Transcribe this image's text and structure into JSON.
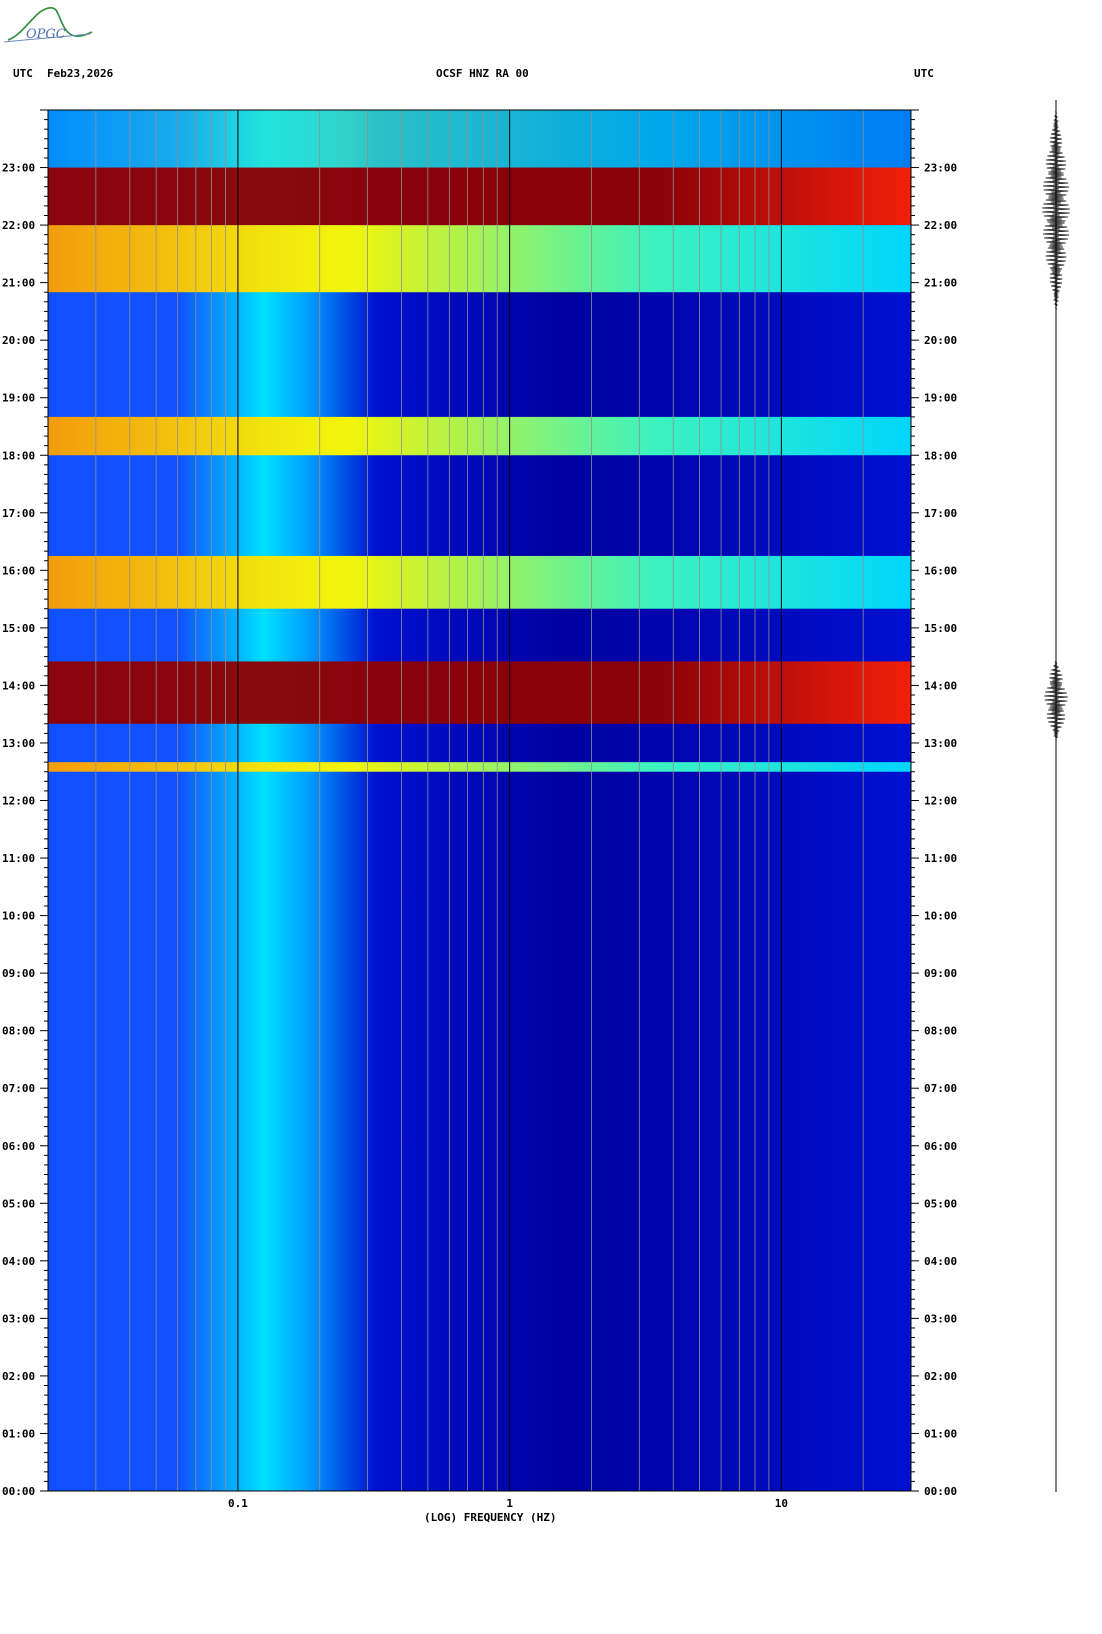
{
  "header": {
    "left_label": "UTC",
    "date": "Feb23,2026",
    "station": "OCSF HNZ RA 00",
    "right_label": "UTC"
  },
  "logo": {
    "text": "OPGC"
  },
  "chart_data": {
    "type": "heatmap",
    "title": "OCSF HNZ RA 00",
    "xlabel": "(LOG) FREQUENCY (HZ)",
    "ylabel": "UTC",
    "x_scale": "log",
    "xlim": [
      0.02,
      30
    ],
    "x_ticks": [
      {
        "value": 0.1,
        "label": "0.1"
      },
      {
        "value": 1,
        "label": "1"
      },
      {
        "value": 10,
        "label": "10"
      }
    ],
    "ylim_hours": [
      0,
      24
    ],
    "y_ticks": [
      "00:00",
      "01:00",
      "02:00",
      "03:00",
      "04:00",
      "05:00",
      "06:00",
      "07:00",
      "08:00",
      "09:00",
      "10:00",
      "11:00",
      "12:00",
      "13:00",
      "14:00",
      "15:00",
      "16:00",
      "17:00",
      "18:00",
      "19:00",
      "20:00",
      "21:00",
      "22:00",
      "23:00"
    ],
    "colormap": [
      "#0000a0",
      "#0010d0",
      "#1050ff",
      "#00a0ff",
      "#00e0ff",
      "#40ffc0",
      "#ffff00",
      "#ffa000",
      "#ff2000",
      "#900000"
    ],
    "high_energy_bands_utc": [
      {
        "start": "12:30",
        "end": "12:40",
        "level": "high"
      },
      {
        "start": "13:20",
        "end": "14:25",
        "level": "saturated"
      },
      {
        "start": "15:20",
        "end": "16:15",
        "level": "high"
      },
      {
        "start": "18:00",
        "end": "18:40",
        "level": "high"
      },
      {
        "start": "20:50",
        "end": "22:00",
        "level": "high"
      },
      {
        "start": "22:00",
        "end": "23:00",
        "level": "saturated"
      },
      {
        "start": "23:00",
        "end": "24:00",
        "level": "moderate"
      }
    ]
  }
}
